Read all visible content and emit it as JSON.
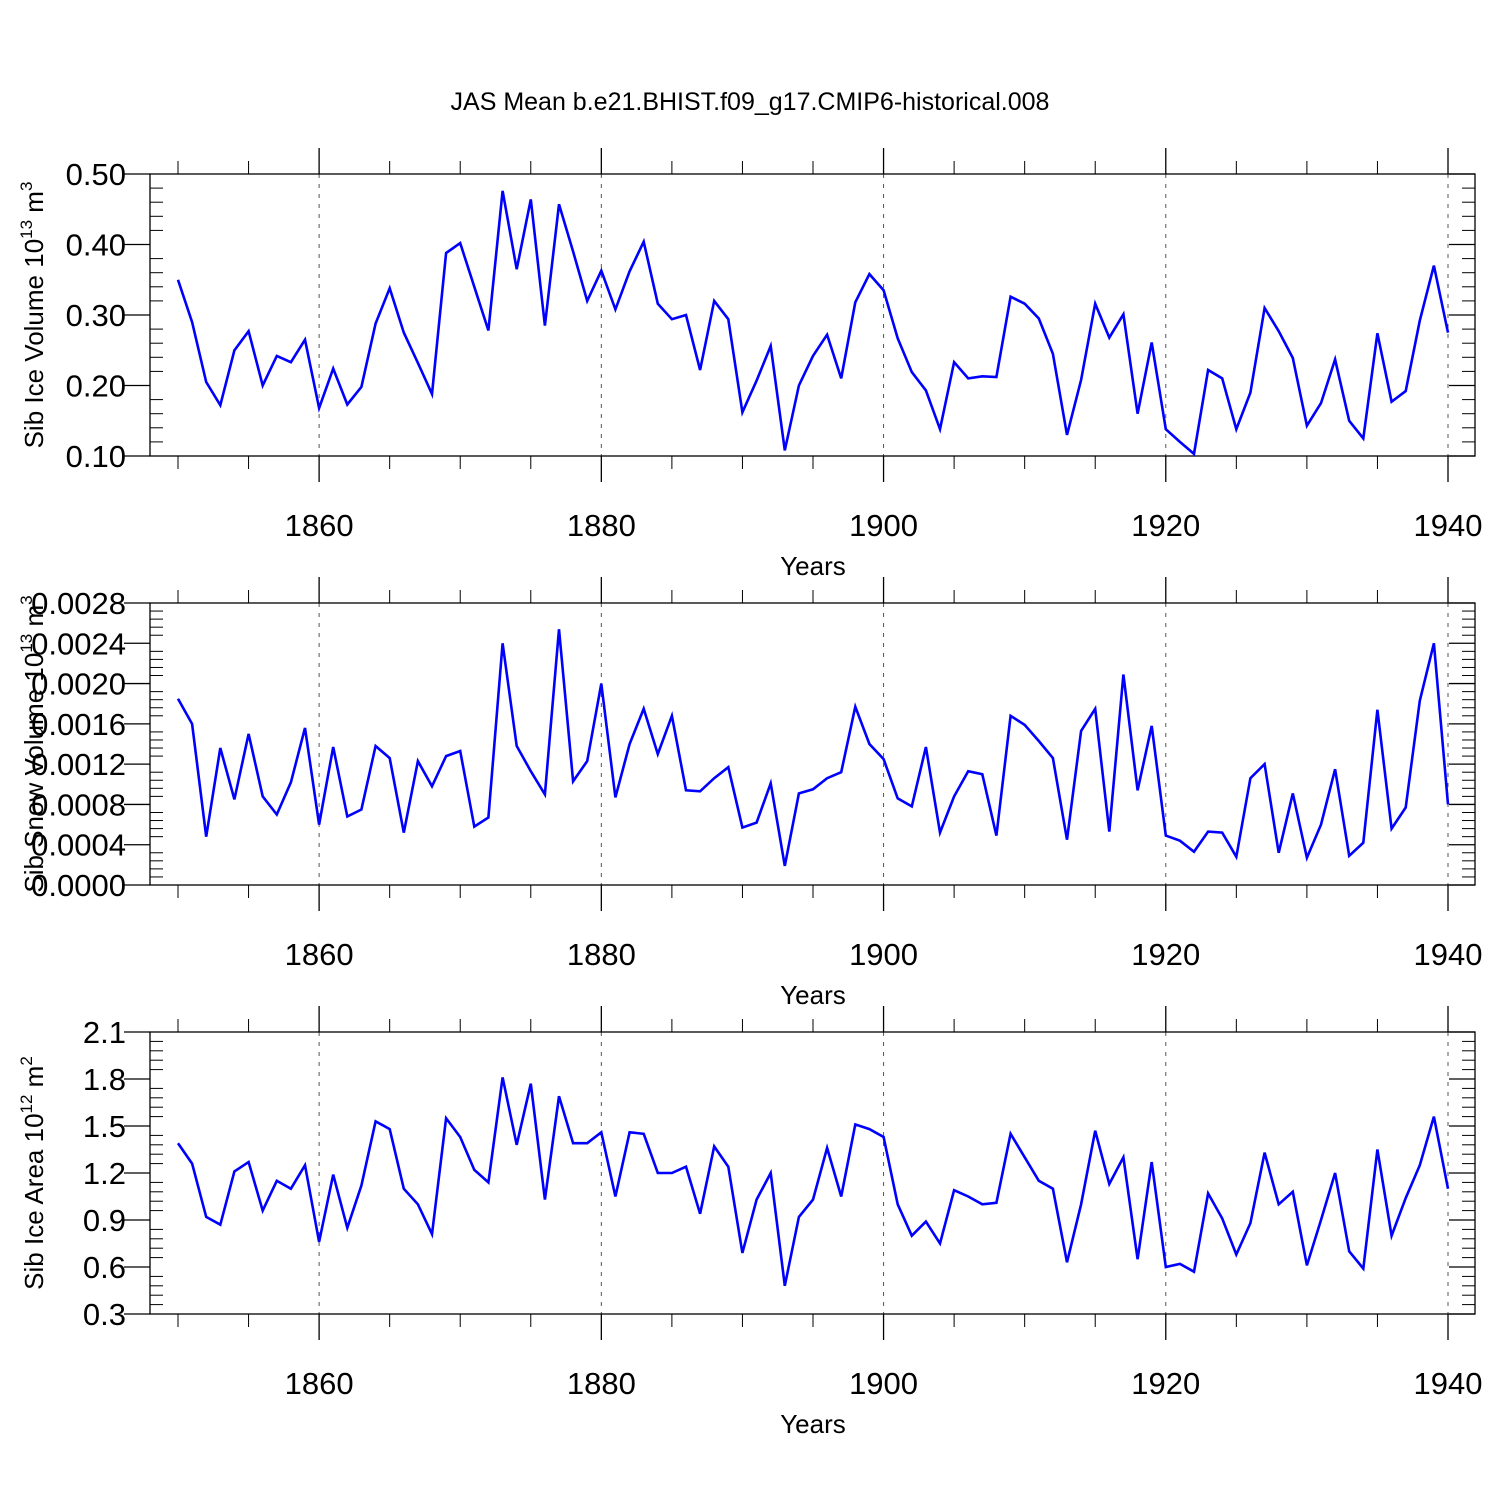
{
  "title": "JAS Mean b.e21.BHIST.f09_g17.CMIP6-historical.008",
  "colors": {
    "line": "#0000ff",
    "axis": "#000000",
    "grid": "#555555"
  },
  "chart_data": [
    {
      "type": "line",
      "title": "JAS Mean b.e21.BHIST.f09_g17.CMIP6-historical.008",
      "xlabel": "Years",
      "ylabel_main": "Sib Ice Volume 10",
      "ylabel_exp": "13",
      "ylabel_unit": " m",
      "ylabel_unit_exp": "3",
      "xlim": [
        1850,
        1940
      ],
      "ylim": [
        0.1,
        0.5
      ],
      "yticks": [
        0.1,
        0.2,
        0.3,
        0.4,
        0.5
      ],
      "ytick_labels": [
        "0.10",
        "0.20",
        "0.30",
        "0.40",
        "0.50"
      ],
      "xticks": [
        1860,
        1880,
        1900,
        1920,
        1940
      ],
      "xtick_labels": [
        "1860",
        "1880",
        "1900",
        "1920",
        "1940"
      ],
      "x_start": 1850,
      "series": [
        {
          "name": "Sib Ice Volume",
          "values": [
            0.35,
            0.29,
            0.205,
            0.172,
            0.25,
            0.277,
            0.2,
            0.242,
            0.233,
            0.265,
            0.168,
            0.224,
            0.173,
            0.198,
            0.288,
            0.338,
            0.275,
            0.232,
            0.188,
            0.388,
            0.402,
            0.34,
            0.278,
            0.476,
            0.365,
            0.464,
            0.285,
            0.457,
            0.39,
            0.32,
            0.363,
            0.308,
            0.362,
            0.404,
            0.316,
            0.294,
            0.3,
            0.222,
            0.32,
            0.294,
            0.162,
            0.207,
            0.256,
            0.108,
            0.2,
            0.242,
            0.272,
            0.21,
            0.318,
            0.358,
            0.335,
            0.267,
            0.219,
            0.193,
            0.138,
            0.233,
            0.21,
            0.213,
            0.212,
            0.326,
            0.316,
            0.295,
            0.245,
            0.13,
            0.208,
            0.316,
            0.268,
            0.301,
            0.16,
            0.261,
            0.138,
            0.12,
            0.103,
            0.222,
            0.21,
            0.138,
            0.19,
            0.31,
            0.277,
            0.239,
            0.143,
            0.175,
            0.237,
            0.15,
            0.125,
            0.274,
            0.177,
            0.192,
            0.292,
            0.37,
            0.275
          ]
        }
      ]
    },
    {
      "type": "line",
      "xlabel": "Years",
      "ylabel_main": "Sib Snow Volume 10",
      "ylabel_exp": "13",
      "ylabel_unit": " m",
      "ylabel_unit_exp": "3",
      "xlim": [
        1850,
        1940
      ],
      "ylim": [
        0,
        0.0028
      ],
      "yticks": [
        0,
        0.0004,
        0.0008,
        0.0012,
        0.0016,
        0.002,
        0.0024,
        0.0028
      ],
      "ytick_labels": [
        "0.0000",
        "0.0004",
        "0.0008",
        "0.0012",
        "0.0016",
        "0.0020",
        "0.0024",
        "0.0028"
      ],
      "xticks": [
        1860,
        1880,
        1900,
        1920,
        1940
      ],
      "xtick_labels": [
        "1860",
        "1880",
        "1900",
        "1920",
        "1940"
      ],
      "x_start": 1850,
      "series": [
        {
          "name": "Sib Snow Volume",
          "values": [
            0.00185,
            0.0016,
            0.00048,
            0.00136,
            0.00085,
            0.0015,
            0.00088,
            0.0007,
            0.00102,
            0.00156,
            0.0006,
            0.00137,
            0.00068,
            0.00075,
            0.00138,
            0.00126,
            0.00052,
            0.00123,
            0.00098,
            0.00128,
            0.00133,
            0.00058,
            0.00067,
            0.0024,
            0.00138,
            0.00113,
            0.0009,
            0.00254,
            0.00103,
            0.00123,
            0.002,
            0.00087,
            0.0014,
            0.00175,
            0.0013,
            0.00168,
            0.00094,
            0.00093,
            0.00106,
            0.00117,
            0.00057,
            0.00062,
            0.00101,
            0.00019,
            0.00091,
            0.00095,
            0.00106,
            0.00112,
            0.00177,
            0.0014,
            0.00125,
            0.00086,
            0.00078,
            0.00137,
            0.00052,
            0.00088,
            0.00113,
            0.0011,
            0.00049,
            0.00168,
            0.00159,
            0.00143,
            0.00126,
            0.00045,
            0.00153,
            0.00175,
            0.00053,
            0.00209,
            0.00094,
            0.00158,
            0.00049,
            0.00044,
            0.00033,
            0.00053,
            0.00052,
            0.00028,
            0.00106,
            0.0012,
            0.00032,
            0.00091,
            0.00027,
            0.0006,
            0.00115,
            0.00029,
            0.00042,
            0.00174,
            0.00056,
            0.00077,
            0.00183,
            0.0024,
            0.0008
          ]
        }
      ]
    },
    {
      "type": "line",
      "xlabel": "Years",
      "ylabel_main": "Sib Ice Area 10",
      "ylabel_exp": "12",
      "ylabel_unit": " m",
      "ylabel_unit_exp": "2",
      "xlim": [
        1850,
        1940
      ],
      "ylim": [
        0.3,
        2.1
      ],
      "yticks": [
        0.3,
        0.6,
        0.9,
        1.2,
        1.5,
        1.8,
        2.1
      ],
      "ytick_labels": [
        "0.3",
        "0.6",
        "0.9",
        "1.2",
        "1.5",
        "1.8",
        "2.1"
      ],
      "xticks": [
        1860,
        1880,
        1900,
        1920,
        1940
      ],
      "xtick_labels": [
        "1860",
        "1880",
        "1900",
        "1920",
        "1940"
      ],
      "x_start": 1850,
      "series": [
        {
          "name": "Sib Ice Area",
          "values": [
            1.39,
            1.26,
            0.92,
            0.87,
            1.21,
            1.27,
            0.96,
            1.15,
            1.1,
            1.25,
            0.76,
            1.19,
            0.85,
            1.12,
            1.53,
            1.48,
            1.1,
            1.0,
            0.81,
            1.55,
            1.43,
            1.22,
            1.14,
            1.81,
            1.38,
            1.77,
            1.03,
            1.69,
            1.39,
            1.39,
            1.46,
            1.05,
            1.46,
            1.45,
            1.2,
            1.2,
            1.24,
            0.94,
            1.37,
            1.24,
            0.69,
            1.03,
            1.2,
            0.48,
            0.92,
            1.03,
            1.36,
            1.05,
            1.51,
            1.48,
            1.43,
            1.0,
            0.8,
            0.89,
            0.75,
            1.09,
            1.05,
            1.0,
            1.01,
            1.45,
            1.3,
            1.15,
            1.1,
            0.63,
            1.0,
            1.47,
            1.13,
            1.3,
            0.65,
            1.27,
            0.6,
            0.62,
            0.57,
            1.07,
            0.91,
            0.68,
            0.88,
            1.33,
            1.0,
            1.08,
            0.61,
            0.9,
            1.2,
            0.7,
            0.59,
            1.35,
            0.8,
            1.04,
            1.25,
            1.56,
            1.1
          ]
        }
      ]
    }
  ]
}
